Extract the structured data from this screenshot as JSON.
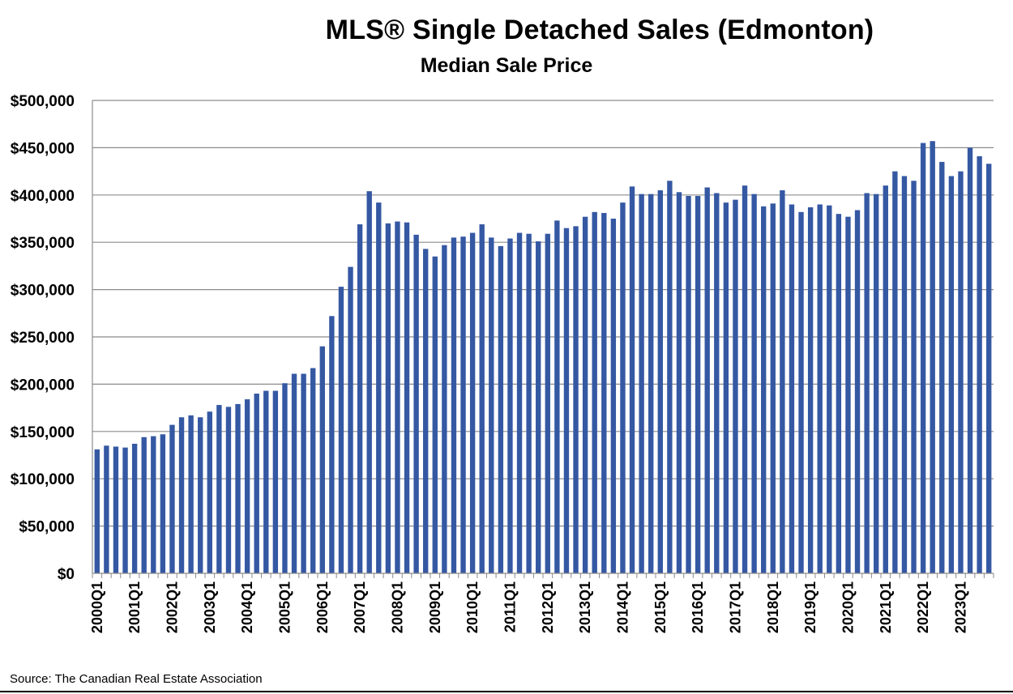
{
  "chart_data": {
    "type": "bar",
    "title": "MLS® Single Detached Sales  (Edmonton)",
    "subtitle": "Median Sale Price",
    "xlabel": "",
    "ylabel": "",
    "ylim": [
      0,
      500000
    ],
    "yticks": [
      0,
      50000,
      100000,
      150000,
      200000,
      250000,
      300000,
      350000,
      400000,
      450000,
      500000
    ],
    "ytick_labels": [
      "$0",
      "$50,000",
      "$100,000",
      "$150,000",
      "$200,000",
      "$250,000",
      "$300,000",
      "$350,000",
      "$400,000",
      "$450,000",
      "$500,000"
    ],
    "xtick_labels": [
      "2000Q1",
      "2001Q1",
      "2002Q1",
      "2003Q1",
      "2004Q1",
      "2005Q1",
      "2006Q1",
      "2007Q1",
      "2008Q1",
      "2009Q1",
      "2010Q1",
      "2011Q1",
      "2012Q1",
      "2013Q1",
      "2014Q1",
      "2015Q1",
      "2016Q1",
      "2017Q1",
      "2018Q1",
      "2019Q1",
      "2020Q1",
      "2021Q1",
      "2022Q1",
      "2023Q1"
    ],
    "grid": true,
    "bar_color": "#3558a3",
    "series": [
      {
        "name": "Median Sale Price",
        "values": [
          131000,
          135000,
          134000,
          133000,
          137000,
          144000,
          145000,
          147000,
          157000,
          165000,
          167000,
          165000,
          171000,
          178000,
          176000,
          179000,
          184000,
          190000,
          193000,
          193000,
          201000,
          211000,
          211000,
          217000,
          240000,
          272000,
          303000,
          324000,
          369000,
          404000,
          392000,
          370000,
          372000,
          371000,
          358000,
          343000,
          335000,
          347000,
          355000,
          356000,
          360000,
          369000,
          355000,
          346000,
          354000,
          360000,
          359000,
          351000,
          359000,
          373000,
          365000,
          367000,
          377000,
          382000,
          381000,
          375000,
          392000,
          409000,
          401000,
          401000,
          405000,
          415000,
          403000,
          399000,
          399000,
          408000,
          402000,
          392000,
          395000,
          410000,
          401000,
          388000,
          391000,
          405000,
          390000,
          382000,
          387000,
          390000,
          389000,
          380000,
          377000,
          384000,
          402000,
          401000,
          410000,
          425000,
          420000,
          415000,
          455000,
          457000,
          435000,
          420000,
          425000,
          450000,
          441000,
          433000
        ]
      }
    ]
  },
  "source": "Source: The Canadian Real Estate Association"
}
